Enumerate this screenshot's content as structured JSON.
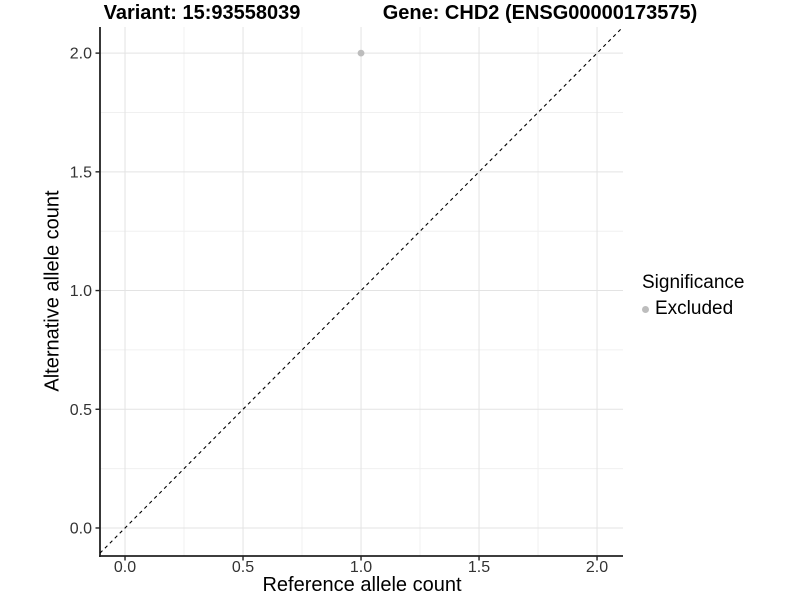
{
  "chart_data": {
    "type": "scatter",
    "titles": [
      {
        "text": "Variant: 15:93558039"
      },
      {
        "text": "Gene: CHD2 (ENSG00000173575)"
      }
    ],
    "xlabel": "Reference allele count",
    "ylabel": "Alternative allele count",
    "x_ticks": {
      "values": [
        0,
        0.5,
        1,
        1.5,
        2
      ],
      "labels": [
        "0.0",
        "0.5",
        "1.0",
        "1.5",
        "2.0"
      ]
    },
    "y_ticks": {
      "values": [
        0,
        0.5,
        1,
        1.5,
        2
      ],
      "labels": [
        "0.0",
        "0.5",
        "1.0",
        "1.5",
        "2.0"
      ]
    },
    "x_minor_ticks": [
      0.25,
      0.75,
      1.25,
      1.75
    ],
    "y_minor_ticks": [
      0.25,
      0.75,
      1.25,
      1.75
    ],
    "xlim": [
      -0.106,
      2.11
    ],
    "ylim": [
      -0.118,
      2.11
    ],
    "grid": {
      "major": true,
      "minor": true
    },
    "series": [
      {
        "name": "Excluded",
        "color": "#bdbdbd",
        "points": [
          [
            1.0,
            2.0
          ]
        ]
      }
    ],
    "reference_line": {
      "equation": "y = x",
      "style": "dashed",
      "color": "#000000"
    },
    "legend": {
      "title": "Significance",
      "position": "right",
      "items": [
        {
          "label": "Excluded",
          "color": "#bdbdbd"
        }
      ]
    }
  },
  "colors": {
    "background": "#ffffff",
    "grid_major": "#e3e3e3",
    "grid_minor": "#f0f0f0",
    "axis_line": "#222222",
    "tick_label": "#333333",
    "title_text": "#000000",
    "point": "#bdbdbd"
  }
}
